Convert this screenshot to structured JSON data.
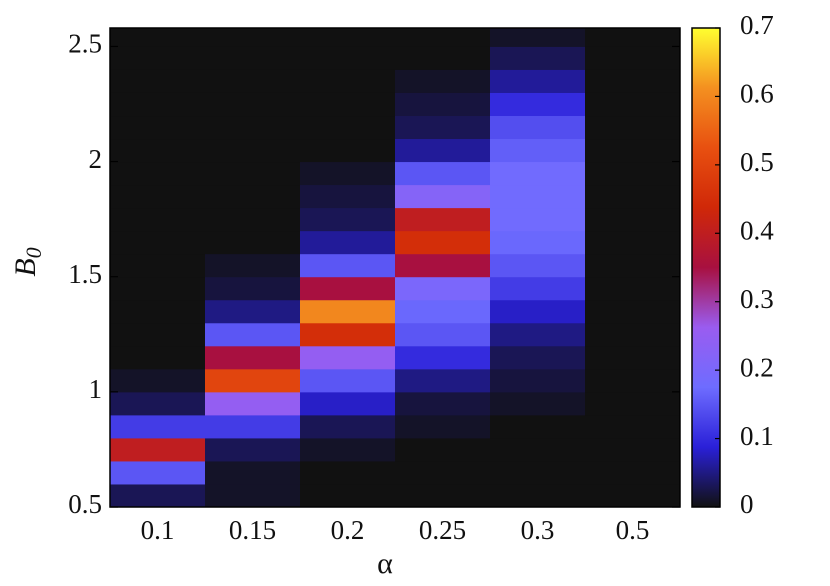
{
  "chart_data": {
    "type": "heatmap",
    "xlabel": "α",
    "ylabel": {
      "text": "B",
      "subscript": "0"
    },
    "categories": [
      "0.1",
      "0.15",
      "0.2",
      "0.25",
      "0.3",
      "0.5"
    ],
    "ybins": [
      0.5,
      0.6,
      0.7,
      0.8,
      0.9,
      1.0,
      1.1,
      1.2,
      1.3,
      1.4,
      1.5,
      1.6,
      1.7,
      1.8,
      1.9,
      2.0,
      2.1,
      2.2,
      2.3,
      2.4,
      2.5,
      2.6
    ],
    "values": [
      [
        0.03,
        0.15,
        0.4,
        0.12,
        0.03,
        0.01,
        0,
        0,
        0,
        0,
        0,
        0,
        0,
        0,
        0,
        0,
        0,
        0,
        0,
        0,
        0
      ],
      [
        0.01,
        0.01,
        0.03,
        0.12,
        0.25,
        0.5,
        0.35,
        0.15,
        0.05,
        0.02,
        0.01,
        0,
        0,
        0,
        0,
        0,
        0,
        0,
        0,
        0,
        0
      ],
      [
        0,
        0,
        0.01,
        0.03,
        0.08,
        0.15,
        0.25,
        0.45,
        0.6,
        0.35,
        0.15,
        0.06,
        0.03,
        0.02,
        0.01,
        0,
        0,
        0,
        0,
        0,
        0
      ],
      [
        0,
        0,
        0,
        0.01,
        0.02,
        0.05,
        0.1,
        0.15,
        0.17,
        0.2,
        0.35,
        0.45,
        0.4,
        0.22,
        0.15,
        0.06,
        0.03,
        0.02,
        0.01,
        0,
        0
      ],
      [
        0,
        0,
        0,
        0,
        0.01,
        0.02,
        0.03,
        0.05,
        0.08,
        0.12,
        0.15,
        0.17,
        0.18,
        0.18,
        0.18,
        0.16,
        0.14,
        0.1,
        0.06,
        0.03,
        0.01
      ],
      [
        0,
        0,
        0,
        0,
        0,
        0,
        0,
        0,
        0,
        0,
        0,
        0,
        0,
        0,
        0,
        0,
        0,
        0,
        0,
        0,
        0
      ]
    ],
    "ylim": [
      0.5,
      2.58
    ],
    "yticks": [
      0.5,
      1,
      1.5,
      2,
      2.5
    ],
    "clim": [
      0,
      0.7
    ],
    "cticks": [
      0,
      0.1,
      0.2,
      0.3,
      0.4,
      0.5,
      0.6,
      0.7
    ],
    "colormap": [
      "#111111",
      "#2a20d8",
      "#6e6cff",
      "#9a5cf0",
      "#a81040",
      "#d02808",
      "#e85010",
      "#f49020",
      "#ffff30"
    ]
  }
}
